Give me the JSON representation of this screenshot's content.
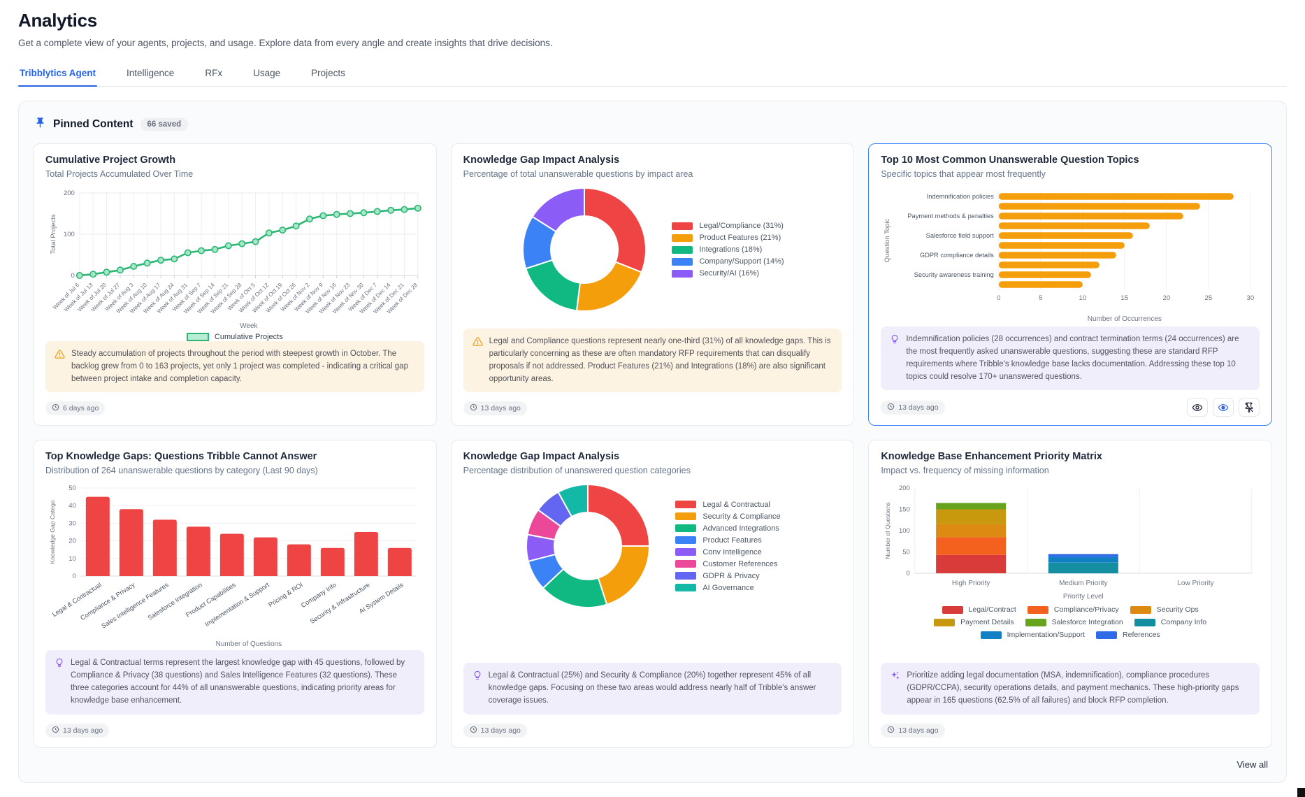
{
  "page": {
    "title": "Analytics",
    "subtitle": "Get a complete view of your agents, projects, and usage. Explore data from every angle and create insights that drive decisions."
  },
  "tabs": [
    {
      "label": "Tribblytics Agent",
      "active": true
    },
    {
      "label": "Intelligence",
      "active": false
    },
    {
      "label": "RFx",
      "active": false
    },
    {
      "label": "Usage",
      "active": false
    },
    {
      "label": "Projects",
      "active": false
    }
  ],
  "pinned": {
    "title": "Pinned Content",
    "badge": "66 saved",
    "view_all": "View all",
    "icons": {
      "header": "pin-icon",
      "timestamp": "clock-icon"
    }
  },
  "cards": [
    {
      "title": "Cumulative Project Growth",
      "subtitle": "Total Projects Accumulated Over Time",
      "insight_icon": "warning-icon",
      "insight": "Steady accumulation of projects throughout the period with steepest growth in October. The backlog grew from 0 to 163 projects, yet only 1 project was completed - indicating a critical gap between project intake and completion capacity.",
      "timestamp": "6 days ago",
      "chart": {
        "type": "line",
        "color": "#2bb673",
        "xlabel": "Week",
        "ylabel": "Total Projects",
        "legend": "Cumulative Projects",
        "ylim": [
          0,
          200
        ],
        "yticks": [
          0,
          100,
          200
        ],
        "categories": [
          "Week of Jul 6",
          "Week of Jul 13",
          "Week of Jul 20",
          "Week of Jul 27",
          "Week of Aug 3",
          "Week of Aug 10",
          "Week of Aug 17",
          "Week of Aug 24",
          "Week of Aug 31",
          "Week of Sep 7",
          "Week of Sep 14",
          "Week of Sep 21",
          "Week of Sep 28",
          "Week of Oct 5",
          "Week of Oct 12",
          "Week of Oct 19",
          "Week of Oct 26",
          "Week of Nov 2",
          "Week of Nov 9",
          "Week of Nov 16",
          "Week of Nov 23",
          "Week of Nov 30",
          "Week of Dec 7",
          "Week of Dec 14",
          "Week of Dec 21",
          "Week of Dec 28"
        ],
        "values": [
          0,
          3,
          8,
          13,
          22,
          30,
          37,
          40,
          55,
          60,
          63,
          72,
          77,
          82,
          103,
          110,
          120,
          137,
          145,
          148,
          150,
          152,
          155,
          158,
          160,
          163
        ]
      }
    },
    {
      "title": "Knowledge Gap Impact Analysis",
      "subtitle": "Percentage of total unanswerable questions by impact area",
      "insight_icon": "warning-icon",
      "insight": "Legal and Compliance questions represent nearly one-third (31%) of all knowledge gaps. This is particularly concerning as these are often mandatory RFP requirements that can disqualify proposals if not addressed. Product Features (21%) and Integrations (18%) are also significant opportunity areas.",
      "timestamp": "13 days ago",
      "chart": {
        "type": "donut",
        "slices": [
          {
            "label": "Legal/Compliance (31%)",
            "value": 31,
            "color": "#ef4444"
          },
          {
            "label": "Product Features (21%)",
            "value": 21,
            "color": "#f59e0b"
          },
          {
            "label": "Integrations (18%)",
            "value": 18,
            "color": "#10b981"
          },
          {
            "label": "Company/Support (14%)",
            "value": 14,
            "color": "#3b82f6"
          },
          {
            "label": "Security/AI (16%)",
            "value": 16,
            "color": "#8b5cf6"
          }
        ]
      }
    },
    {
      "title": "Top 10 Most Common Unanswerable Question Topics",
      "subtitle": "Specific topics that appear most frequently",
      "selected": true,
      "insight_icon": "lightbulb-icon",
      "insight": "Indemnification policies (28 occurrences) and contract termination terms (24 occurrences) are the most frequently asked unanswerable questions, suggesting these are standard RFP requirements where Tribble's knowledge base lacks documentation. Addressing these top 10 topics could resolve 170+ unanswered questions.",
      "timestamp": "13 days ago",
      "actions": [
        {
          "name": "preview-button",
          "icon": "eye-icon"
        },
        {
          "name": "visibility-button",
          "icon": "colored-eye-icon"
        },
        {
          "name": "unpin-button",
          "icon": "pin-off-icon"
        }
      ],
      "chart": {
        "type": "hbar",
        "color": "#f59e0b",
        "xlabel": "Number of Occurrences",
        "ylabel": "Question Topic",
        "xlim": [
          0,
          30
        ],
        "xticks": [
          0,
          5,
          10,
          15,
          20,
          25,
          30
        ],
        "labels": [
          "Indemnification policies",
          "",
          "Payment methods & penalties",
          "",
          "Salesforce field support",
          "",
          "GDPR compliance details",
          "",
          "Security awareness training",
          ""
        ],
        "values": [
          28,
          24,
          22,
          18,
          16,
          15,
          14,
          12,
          11,
          10
        ]
      }
    },
    {
      "title": "Top Knowledge Gaps: Questions Tribble Cannot Answer",
      "subtitle": "Distribution of 264 unanswerable questions by category (Last 90 days)",
      "insight_icon": "lightbulb-icon",
      "insight": "Legal & Contractual terms represent the largest knowledge gap with 45 questions, followed by Compliance & Privacy (38 questions) and Sales Intelligence Features (32 questions). These three categories account for 44% of all unanswerable questions, indicating priority areas for knowledge base enhancement.",
      "timestamp": "13 days ago",
      "chart": {
        "type": "vbar",
        "color": "#ef4444",
        "xlabel": "Number of Questions",
        "ylabel": "Knowledge Gap Catego",
        "ylim": [
          0,
          50
        ],
        "yticks": [
          0,
          10,
          20,
          30,
          40,
          50
        ],
        "categories": [
          "Legal & Contractual",
          "Compliance & Privacy",
          "Sales Intelligence Features",
          "Salesforce Integration",
          "Product Capabilities",
          "Implementation & Support",
          "Pricing & ROI",
          "Company Info",
          "Security & Infrastructure",
          "AI System Details"
        ],
        "values": [
          45,
          38,
          32,
          28,
          24,
          22,
          18,
          16,
          25,
          16
        ]
      }
    },
    {
      "title": "Knowledge Gap Impact Analysis",
      "subtitle": "Percentage distribution of unanswered question categories",
      "insight_icon": "lightbulb-icon",
      "insight": "Legal & Contractual (25%) and Security & Compliance (20%) together represent 45% of all knowledge gaps. Focusing on these two areas would address nearly half of Tribble's answer coverage issues.",
      "timestamp": "13 days ago",
      "chart": {
        "type": "donut",
        "slices": [
          {
            "label": "Legal & Contractual",
            "value": 25,
            "color": "#ef4444"
          },
          {
            "label": "Security & Compliance",
            "value": 20,
            "color": "#f59e0b"
          },
          {
            "label": "Advanced Integrations",
            "value": 18,
            "color": "#10b981"
          },
          {
            "label": "Product Features",
            "value": 8,
            "color": "#3b82f6"
          },
          {
            "label": "Conv Intelligence",
            "value": 7,
            "color": "#8b5cf6"
          },
          {
            "label": "Customer References",
            "value": 7,
            "color": "#ec4899"
          },
          {
            "label": "GDPR & Privacy",
            "value": 7,
            "color": "#6366f1"
          },
          {
            "label": "AI Governance",
            "value": 8,
            "color": "#14b8a6"
          }
        ]
      }
    },
    {
      "title": "Knowledge Base Enhancement Priority Matrix",
      "subtitle": "Impact vs. frequency of missing information",
      "insight_icon": "sparkles-icon",
      "insight": "Prioritize adding legal documentation (MSA, indemnification), compliance procedures (GDPR/CCPA), security operations details, and payment mechanics. These high-priority gaps appear in 165 questions (62.5% of all failures) and block RFP completion.",
      "timestamp": "13 days ago",
      "chart": {
        "type": "stacked",
        "xlabel": "Priority Level",
        "ylabel": "Number of Questions",
        "ylim": [
          0,
          200
        ],
        "yticks": [
          0,
          50,
          100,
          150,
          200
        ],
        "categories": [
          "High Priority",
          "Medium Priority",
          "Low Priority"
        ],
        "series": [
          {
            "name": "Legal/Contract",
            "color": "#d93a3a",
            "values": [
              43,
              0,
              0
            ]
          },
          {
            "name": "Compliance/Privacy",
            "color": "#f4611f",
            "values": [
              42,
              0,
              0
            ]
          },
          {
            "name": "Security Ops",
            "color": "#dd8a12",
            "values": [
              30,
              0,
              0
            ]
          },
          {
            "name": "Payment Details",
            "color": "#c8990f",
            "values": [
              35,
              0,
              0
            ]
          },
          {
            "name": "Salesforce Integration",
            "color": "#68a31d",
            "values": [
              15,
              0,
              0
            ]
          },
          {
            "name": "Company Info",
            "color": "#148ea1",
            "values": [
              0,
              25,
              0
            ]
          },
          {
            "name": "Implementation/Support",
            "color": "#1180c4",
            "values": [
              0,
              13,
              0
            ]
          },
          {
            "name": "References",
            "color": "#2f6be8",
            "values": [
              0,
              7,
              0
            ]
          }
        ]
      }
    }
  ]
}
